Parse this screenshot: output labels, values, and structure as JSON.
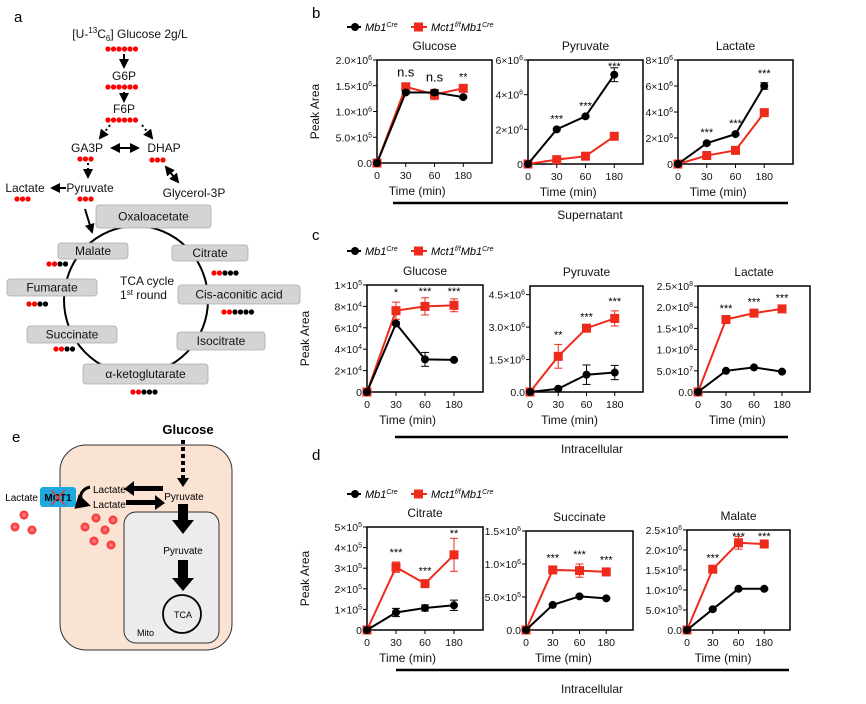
{
  "panels": {
    "a": "a",
    "b": "b",
    "c": "c",
    "d": "d",
    "e": "e"
  },
  "colors": {
    "control": "#000000",
    "knockout": "#ee2a1b",
    "label_red": "#ff0000",
    "label_black": "#000000",
    "cell": "#fbe3d3",
    "mito": "#ececec",
    "mct1": "#1ba9e0"
  },
  "legend": {
    "control": {
      "base": "Mb1",
      "sup": "Cre"
    },
    "knockout": {
      "base1": "Mct1",
      "sup1": "f/f",
      "base2": "Mb1",
      "sup2": "Cre"
    }
  },
  "sections": {
    "b": "Supernatant",
    "c": "Intracellular",
    "d": "Intracellular"
  },
  "pathway": {
    "title_pre": "[U-",
    "title_sup": "13",
    "title_mid": "C",
    "title_sub": "6",
    "title_post": "] Glucose  2g/L",
    "g6p": "G6P",
    "f6p": "F6P",
    "ga3p": "GA3P",
    "dhap": "DHAP",
    "pyruvate": "Pyruvate",
    "lactate": "Lactate",
    "glycerol3p": "Glycerol-3P",
    "tca_boxes": {
      "oxaloacetate": "Oxaloacetate",
      "citrate": "Citrate",
      "cis_aconitic": "Cis-aconitic acid",
      "isocitrate": "Isocitrate",
      "akg": "α-ketoglutarate",
      "succinate": "Succinate",
      "fumarate": "Fumarate",
      "malate": "Malate"
    },
    "tca_label_1": "TCA cycle",
    "tca_label_2a": "1",
    "tca_label_2sup": "st",
    "tca_label_2b": " round",
    "carbon_labels": {
      "glucose": "RRRRRR",
      "g6p": "RRRRRR",
      "f6p": "RRRRRR",
      "ga3p": "RRR",
      "dhap": "RRR",
      "pyruvate": "RRR",
      "lactate": "RRR",
      "citrate": "RRBBB",
      "cis_aconitic": "RRBBBB",
      "akg": "RRBBB",
      "succinate": "RRBB",
      "fumarate": "RRBB",
      "malate": "RRBB"
    }
  },
  "model": {
    "glucose": "Glucose",
    "pyruvate_cyto": "Pyruvate",
    "pyruvate_mito": "Pyruvate",
    "lactate_out": "Lactate",
    "lactate_in_1": "Lactate",
    "lactate_in_2": "Lactate",
    "mct1": "MCT1",
    "tca": "TCA",
    "mito": "Mito"
  },
  "chart_data": [
    {
      "id": "b-glucose",
      "type": "line",
      "title": "Glucose",
      "xlabel": "Time (min)",
      "ylabel": "Peak Area",
      "categories": [
        "0",
        "30",
        "60",
        "180"
      ],
      "ylim": [
        0,
        2000000
      ],
      "yticks": [
        0,
        500000,
        1000000,
        1500000,
        2000000
      ],
      "yticklabels": [
        "0.0",
        "5.0×10^5",
        "1.0×10^6",
        "1.5×10^6",
        "2.0×10^6"
      ],
      "grid": false,
      "series": [
        {
          "name": "Mb1Cre",
          "color": "#000000",
          "marker": "circle",
          "values": [
            0,
            1370000,
            1370000,
            1280000
          ],
          "err": [
            0,
            30000,
            50000,
            20000
          ]
        },
        {
          "name": "Mct1f/fMb1Cre",
          "color": "#ee2a1b",
          "marker": "square",
          "values": [
            0,
            1480000,
            1330000,
            1450000
          ],
          "err": [
            0,
            40000,
            100000,
            40000
          ]
        }
      ],
      "annotations": [
        "",
        "n.s",
        "n.s",
        "**"
      ]
    },
    {
      "id": "b-pyruvate",
      "type": "line",
      "title": "Pyruvate",
      "xlabel": "Time (min)",
      "ylabel": "",
      "categories": [
        "0",
        "30",
        "60",
        "180"
      ],
      "ylim": [
        0,
        6000000
      ],
      "yticks": [
        0,
        2000000,
        4000000,
        6000000
      ],
      "yticklabels": [
        "0",
        "2×10^6",
        "4×10^6",
        "6×10^6"
      ],
      "grid": false,
      "series": [
        {
          "name": "Mb1Cre",
          "color": "#000000",
          "marker": "circle",
          "values": [
            0,
            2000000,
            2750000,
            5150000
          ],
          "err": [
            0,
            60000,
            60000,
            400000
          ]
        },
        {
          "name": "Mct1f/fMb1Cre",
          "color": "#ee2a1b",
          "marker": "square",
          "values": [
            0,
            250000,
            450000,
            1600000
          ],
          "err": [
            0,
            30000,
            40000,
            60000
          ]
        }
      ],
      "annotations": [
        "",
        "***",
        "***",
        "***"
      ]
    },
    {
      "id": "b-lactate",
      "type": "line",
      "title": "Lactate",
      "xlabel": "Time (min)",
      "ylabel": "",
      "categories": [
        "0",
        "30",
        "60",
        "180"
      ],
      "ylim": [
        0,
        8000000
      ],
      "yticks": [
        0,
        2000000,
        4000000,
        6000000,
        8000000
      ],
      "yticklabels": [
        "0",
        "2×10^6",
        "4×10^6",
        "6×10^6",
        "8×10^6"
      ],
      "grid": false,
      "series": [
        {
          "name": "Mb1Cre",
          "color": "#000000",
          "marker": "circle",
          "values": [
            0,
            1600000,
            2300000,
            6000000
          ],
          "err": [
            0,
            80000,
            80000,
            250000
          ]
        },
        {
          "name": "Mct1f/fMb1Cre",
          "color": "#ee2a1b",
          "marker": "square",
          "values": [
            0,
            650000,
            1050000,
            3950000
          ],
          "err": [
            0,
            50000,
            50000,
            100000
          ]
        }
      ],
      "annotations": [
        "",
        "***",
        "***",
        "***"
      ]
    },
    {
      "id": "c-glucose",
      "type": "line",
      "title": "Glucose",
      "xlabel": "Time (min)",
      "ylabel": "Peak Area",
      "categories": [
        "0",
        "30",
        "60",
        "180"
      ],
      "ylim": [
        0,
        100000
      ],
      "yticks": [
        0,
        20000,
        40000,
        60000,
        80000,
        100000
      ],
      "yticklabels": [
        "0",
        "2×10^4",
        "4×10^4",
        "6×10^4",
        "8×10^4",
        "1×10^5"
      ],
      "grid": false,
      "series": [
        {
          "name": "Mb1Cre",
          "color": "#000000",
          "marker": "circle",
          "values": [
            0,
            64000,
            30500,
            30000
          ],
          "err": [
            0,
            1500,
            6500,
            800
          ]
        },
        {
          "name": "Mct1f/fMb1Cre",
          "color": "#ee2a1b",
          "marker": "square",
          "values": [
            0,
            76000,
            80000,
            81000
          ],
          "err": [
            0,
            8000,
            8000,
            6000
          ]
        }
      ],
      "annotations": [
        "",
        "*",
        "***",
        "***"
      ]
    },
    {
      "id": "c-pyruvate",
      "type": "line",
      "title": "Pyruvate",
      "xlabel": "Time (min)",
      "ylabel": "",
      "categories": [
        "0",
        "30",
        "60",
        "180"
      ],
      "ylim": [
        0,
        4900000
      ],
      "yticks": [
        0,
        1500000,
        3000000,
        4500000
      ],
      "yticklabels": [
        "0.0",
        "1.5×10^6",
        "3.0×10^6",
        "4.5×10^6"
      ],
      "grid": false,
      "series": [
        {
          "name": "Mb1Cre",
          "color": "#000000",
          "marker": "circle",
          "values": [
            0,
            150000,
            800000,
            900000
          ],
          "err": [
            0,
            50000,
            450000,
            330000
          ]
        },
        {
          "name": "Mct1f/fMb1Cre",
          "color": "#ee2a1b",
          "marker": "square",
          "values": [
            0,
            1650000,
            2950000,
            3400000
          ],
          "err": [
            0,
            550000,
            80000,
            350000
          ]
        }
      ],
      "annotations": [
        "",
        "**",
        "***",
        "***"
      ]
    },
    {
      "id": "c-lactate",
      "type": "line",
      "title": "Lactate",
      "xlabel": "Time (min)",
      "ylabel": "",
      "categories": [
        "0",
        "30",
        "60",
        "180"
      ],
      "ylim": [
        0,
        250000000
      ],
      "yticks": [
        0,
        50000000,
        100000000,
        150000000,
        200000000,
        250000000
      ],
      "yticklabels": [
        "0.0",
        "5.0×10^7",
        "1.0×10^8",
        "1.5×10^8",
        "2.0×10^8",
        "2.5×10^8"
      ],
      "grid": false,
      "series": [
        {
          "name": "Mb1Cre",
          "color": "#000000",
          "marker": "circle",
          "values": [
            0,
            50000000,
            58000000,
            48000000
          ],
          "err": [
            0,
            2000000,
            2000000,
            2000000
          ]
        },
        {
          "name": "Mct1f/fMb1Cre",
          "color": "#ee2a1b",
          "marker": "square",
          "values": [
            0,
            171000000,
            186000000,
            196000000
          ],
          "err": [
            0,
            4000000,
            4000000,
            3000000
          ]
        }
      ],
      "annotations": [
        "",
        "***",
        "***",
        "***"
      ]
    },
    {
      "id": "d-citrate",
      "type": "line",
      "title": "Citrate",
      "xlabel": "Time (min)",
      "ylabel": "Peak Area",
      "categories": [
        "0",
        "30",
        "60",
        "180"
      ],
      "ylim": [
        0,
        500000
      ],
      "yticks": [
        0,
        100000,
        200000,
        300000,
        400000,
        500000
      ],
      "yticklabels": [
        "0",
        "1×10^5",
        "2×10^5",
        "3×10^5",
        "4×10^5",
        "5×10^5"
      ],
      "grid": false,
      "series": [
        {
          "name": "Mb1Cre",
          "color": "#000000",
          "marker": "circle",
          "values": [
            0,
            85000,
            107000,
            120000
          ],
          "err": [
            0,
            20000,
            15000,
            25000
          ]
        },
        {
          "name": "Mct1f/fMb1Cre",
          "color": "#ee2a1b",
          "marker": "square",
          "values": [
            0,
            305000,
            225000,
            365000
          ],
          "err": [
            0,
            25000,
            15000,
            80000
          ]
        }
      ],
      "annotations": [
        "",
        "***",
        "***",
        "**"
      ]
    },
    {
      "id": "d-succinate",
      "type": "line",
      "title": "Succinate",
      "xlabel": "Time (min)",
      "ylabel": "",
      "categories": [
        "0",
        "30",
        "60",
        "180"
      ],
      "ylim": [
        0,
        1500000
      ],
      "yticks": [
        0,
        500000,
        1000000,
        1500000
      ],
      "yticklabels": [
        "0.0",
        "5.0×10^5",
        "1.0×10^6",
        "1.5×10^6"
      ],
      "grid": false,
      "series": [
        {
          "name": "Mb1Cre",
          "color": "#000000",
          "marker": "circle",
          "values": [
            0,
            380000,
            510000,
            480000
          ],
          "err": [
            0,
            15000,
            15000,
            15000
          ]
        },
        {
          "name": "Mct1f/fMb1Cre",
          "color": "#ee2a1b",
          "marker": "square",
          "values": [
            0,
            910000,
            900000,
            880000
          ],
          "err": [
            0,
            40000,
            100000,
            40000
          ]
        }
      ],
      "annotations": [
        "",
        "***",
        "***",
        "***"
      ]
    },
    {
      "id": "d-malate",
      "type": "line",
      "title": "Malate",
      "xlabel": "Time (min)",
      "ylabel": "",
      "categories": [
        "0",
        "30",
        "60",
        "180"
      ],
      "ylim": [
        0,
        2500000
      ],
      "yticks": [
        0,
        500000,
        1000000,
        1500000,
        2000000,
        2500000
      ],
      "yticklabels": [
        "0.0",
        "5.0×10^5",
        "1.0×10^6",
        "1.5×10^6",
        "2.0×10^6",
        "2.5×10^6"
      ],
      "grid": false,
      "series": [
        {
          "name": "Mb1Cre",
          "color": "#000000",
          "marker": "circle",
          "values": [
            0,
            520000,
            1030000,
            1030000
          ],
          "err": [
            0,
            20000,
            20000,
            20000
          ]
        },
        {
          "name": "Mct1f/fMb1Cre",
          "color": "#ee2a1b",
          "marker": "square",
          "values": [
            0,
            1520000,
            2180000,
            2150000
          ],
          "err": [
            0,
            40000,
            160000,
            100000
          ]
        }
      ],
      "annotations": [
        "",
        "***",
        "***",
        "***"
      ]
    }
  ]
}
